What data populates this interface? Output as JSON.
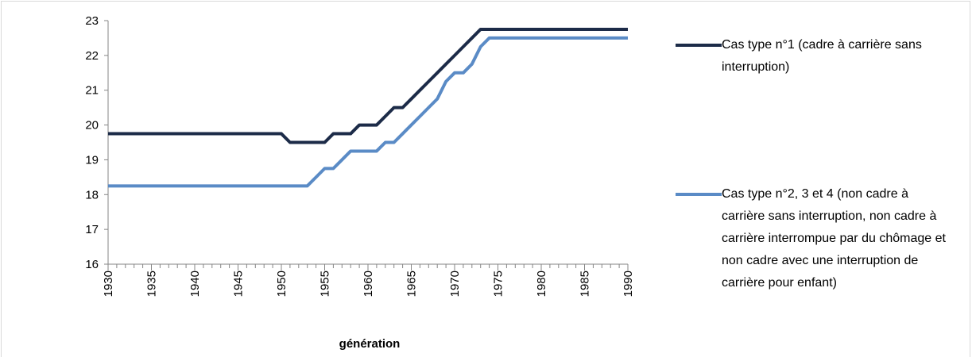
{
  "chart_data": {
    "type": "line",
    "xlabel": "génération",
    "x": [
      1930,
      1931,
      1932,
      1933,
      1934,
      1935,
      1936,
      1937,
      1938,
      1939,
      1940,
      1941,
      1942,
      1943,
      1944,
      1945,
      1946,
      1947,
      1948,
      1949,
      1950,
      1951,
      1952,
      1953,
      1954,
      1955,
      1956,
      1957,
      1958,
      1959,
      1960,
      1961,
      1962,
      1963,
      1964,
      1965,
      1966,
      1967,
      1968,
      1969,
      1970,
      1971,
      1972,
      1973,
      1974,
      1975,
      1976,
      1977,
      1978,
      1979,
      1980,
      1981,
      1982,
      1983,
      1984,
      1985,
      1986,
      1987,
      1988,
      1989,
      1990
    ],
    "series": [
      {
        "name": "Cas type n°1 (cadre à carrière sans interruption)",
        "color": "#1c2b48",
        "values": [
          19.75,
          19.75,
          19.75,
          19.75,
          19.75,
          19.75,
          19.75,
          19.75,
          19.75,
          19.75,
          19.75,
          19.75,
          19.75,
          19.75,
          19.75,
          19.75,
          19.75,
          19.75,
          19.75,
          19.75,
          19.75,
          19.5,
          19.5,
          19.5,
          19.5,
          19.5,
          19.75,
          19.75,
          19.75,
          20,
          20,
          20,
          20.25,
          20.5,
          20.5,
          20.75,
          21,
          21.25,
          21.5,
          21.75,
          22,
          22.25,
          22.5,
          22.75,
          22.75,
          22.75,
          22.75,
          22.75,
          22.75,
          22.75,
          22.75,
          22.75,
          22.75,
          22.75,
          22.75,
          22.75,
          22.75,
          22.75,
          22.75,
          22.75,
          22.75
        ]
      },
      {
        "name": "Cas type n°2, 3 et 4 (non cadre à carrière sans interruption, non cadre à carrière interrompue par du chômage et non cadre avec une interruption de carrière pour enfant)",
        "color": "#5a8bc6",
        "values": [
          18.25,
          18.25,
          18.25,
          18.25,
          18.25,
          18.25,
          18.25,
          18.25,
          18.25,
          18.25,
          18.25,
          18.25,
          18.25,
          18.25,
          18.25,
          18.25,
          18.25,
          18.25,
          18.25,
          18.25,
          18.25,
          18.25,
          18.25,
          18.25,
          18.5,
          18.75,
          18.75,
          19,
          19.25,
          19.25,
          19.25,
          19.25,
          19.5,
          19.5,
          19.75,
          20,
          20.25,
          20.5,
          20.75,
          21.25,
          21.5,
          21.5,
          21.75,
          22.25,
          22.5,
          22.5,
          22.5,
          22.5,
          22.5,
          22.5,
          22.5,
          22.5,
          22.5,
          22.5,
          22.5,
          22.5,
          22.5,
          22.5,
          22.5,
          22.5,
          22.5
        ]
      }
    ],
    "xlim": [
      1930,
      1990
    ],
    "xticks": [
      1930,
      1935,
      1940,
      1945,
      1950,
      1955,
      1960,
      1965,
      1970,
      1975,
      1980,
      1985,
      1990
    ],
    "ylim": [
      16,
      23
    ],
    "yticks": [
      16,
      17,
      18,
      19,
      20,
      21,
      22,
      23
    ],
    "grid": false
  }
}
